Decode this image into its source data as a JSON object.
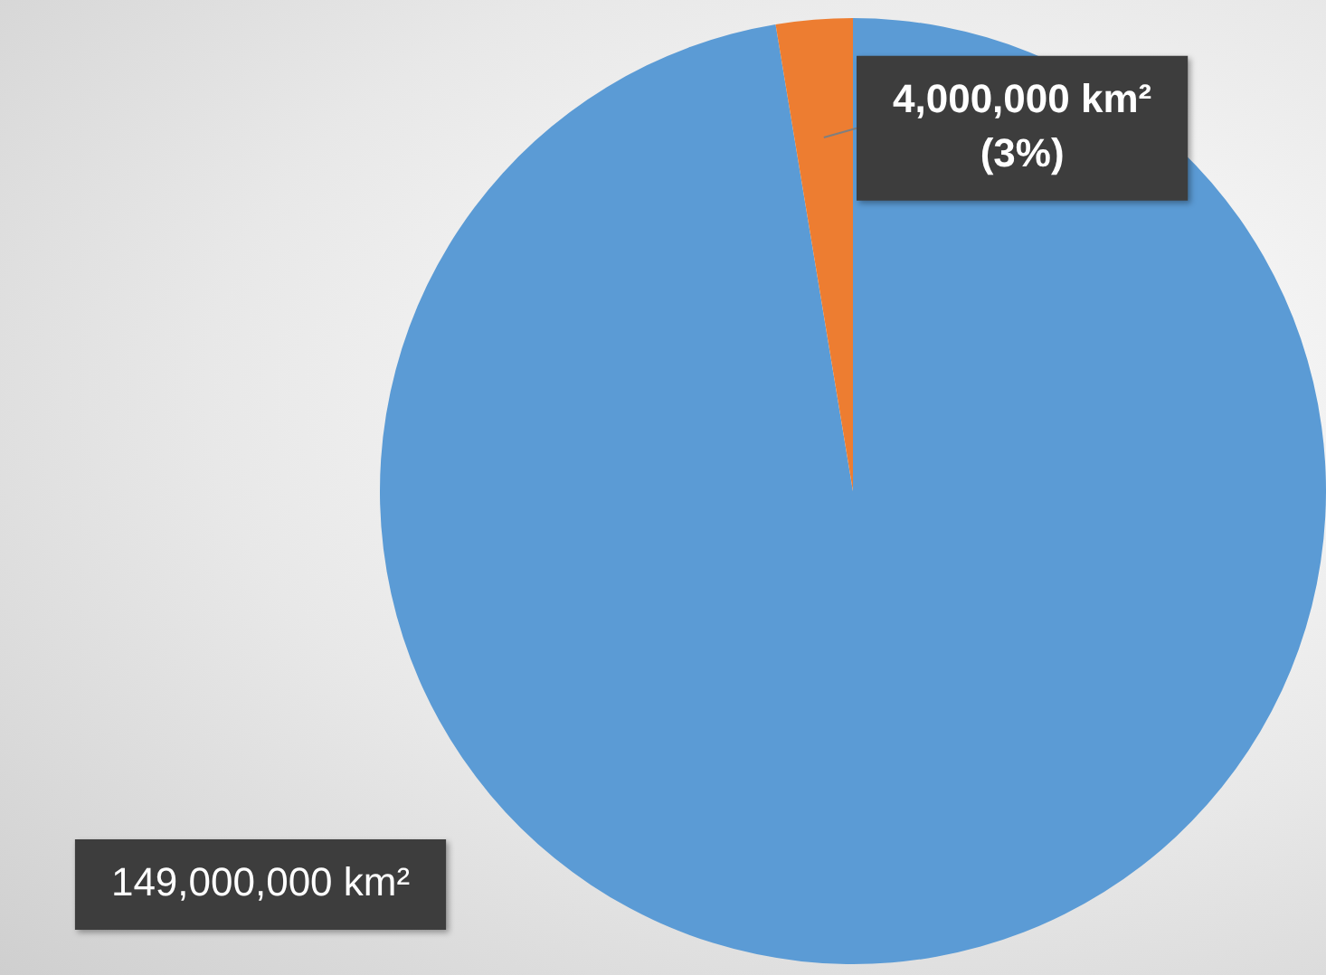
{
  "chart_data": {
    "type": "pie",
    "categories": [
      null,
      null
    ],
    "values": [
      149000000,
      4000000
    ],
    "colors": [
      "#5b9bd5",
      "#ed7d31"
    ],
    "value_labels": [
      "149,000,000 km²",
      "4,000,000 km²\n(3%)"
    ],
    "legend": false
  }
}
